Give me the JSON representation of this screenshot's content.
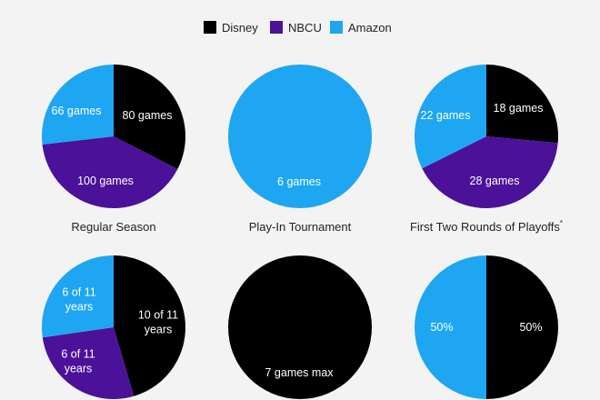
{
  "legend": [
    {
      "label": "Disney",
      "color": "#000000"
    },
    {
      "label": "NBCU",
      "color": "#4b1199"
    },
    {
      "label": "Amazon",
      "color": "#1ea6f2"
    }
  ],
  "chart_data": [
    {
      "type": "pie",
      "title": "Regular Season",
      "title_note": "",
      "slices": [
        {
          "series": "Disney",
          "value": 80,
          "label": "80 games"
        },
        {
          "series": "NBCU",
          "value": 100,
          "label": "100 games"
        },
        {
          "series": "Amazon",
          "value": 66,
          "label": "66 games"
        }
      ]
    },
    {
      "type": "pie",
      "title": "Play-In Tournament",
      "title_note": "",
      "slices": [
        {
          "series": "Amazon",
          "value": 6,
          "label": "6 games"
        }
      ]
    },
    {
      "type": "pie",
      "title": "First Two Rounds of Playoffs",
      "title_note": "*",
      "slices": [
        {
          "series": "Disney",
          "value": 18,
          "label": "18 games"
        },
        {
          "series": "NBCU",
          "value": 28,
          "label": "28 games"
        },
        {
          "series": "Amazon",
          "value": 22,
          "label": "22 games"
        }
      ]
    },
    {
      "type": "pie",
      "title": "",
      "title_note": "",
      "slices": [
        {
          "series": "Disney",
          "value": 10,
          "label": "10 of 11 years"
        },
        {
          "series": "NBCU",
          "value": 6,
          "label": "6 of 11 years"
        },
        {
          "series": "Amazon",
          "value": 6,
          "label": "6 of 11 years"
        }
      ]
    },
    {
      "type": "pie",
      "title": "",
      "title_note": "",
      "slices": [
        {
          "series": "Disney",
          "value": 7,
          "label": "7 games max"
        }
      ]
    },
    {
      "type": "pie",
      "title": "",
      "title_note": "",
      "slices": [
        {
          "series": "Disney",
          "value": 50,
          "label": "50%"
        },
        {
          "series": "Amazon",
          "value": 50,
          "label": "50%"
        }
      ]
    }
  ]
}
